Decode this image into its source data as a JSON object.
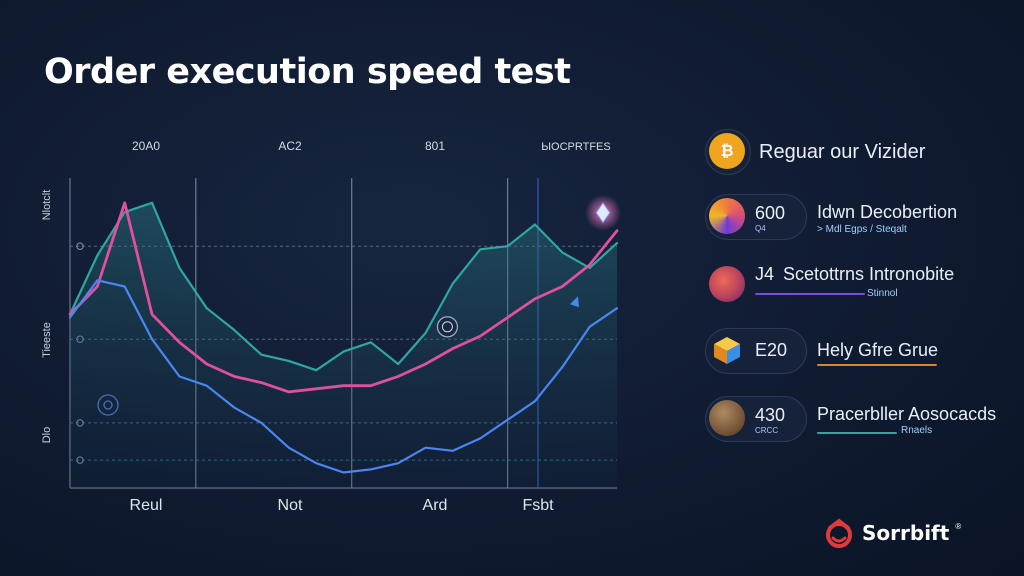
{
  "title": "Order execution speed test",
  "chart_data": {
    "type": "line",
    "top_labels": [
      "20A0",
      "AC2",
      "801",
      "ЫOCPRTFES"
    ],
    "categories": [
      "Reul",
      "Not",
      "Ard",
      "Fsbt"
    ],
    "y_tick_labels": [
      "Nlotclt",
      "Tieeste",
      "Dlo"
    ],
    "x": [
      0,
      0.5,
      1,
      1.5,
      2,
      2.5,
      3,
      3.5,
      4,
      4.5,
      5,
      5.5,
      6,
      6.5,
      7,
      7.5,
      8,
      8.5,
      9,
      9.5,
      10
    ],
    "ylim": [
      0,
      100
    ],
    "grid": true,
    "series": [
      {
        "color": "#2fa6a0",
        "values": [
          56,
          75,
          89,
          92,
          71,
          58,
          51,
          43,
          41,
          38,
          44,
          47,
          40,
          50,
          66,
          77,
          78,
          85,
          76,
          71,
          79
        ]
      },
      {
        "color": "#e0509c",
        "values": [
          56,
          65,
          92,
          56,
          47,
          40,
          36,
          34,
          31,
          32,
          33,
          33,
          36,
          40,
          45,
          49,
          55,
          61,
          65,
          72,
          83
        ]
      },
      {
        "color": "#4a86ef",
        "values": [
          55,
          67,
          65,
          48,
          36,
          33,
          26,
          21,
          13,
          8,
          5,
          6,
          8,
          13,
          12,
          16,
          22,
          28,
          39,
          52,
          58
        ]
      }
    ],
    "markers": [
      {
        "x": 6.9,
        "y": 52
      }
    ]
  },
  "sidebar": {
    "header": {
      "label": "Reguar our Vizider",
      "icon": "bitcoin-icon",
      "color": "#f0a520"
    },
    "items": [
      {
        "value": "600",
        "sub": "Q4",
        "label": "Idwn Decobertion",
        "caption": "> Mdl Egps / Steqalt",
        "icon": "swirl-coin-icon",
        "color": "#d64d7c"
      },
      {
        "value": "J4",
        "sub": "",
        "label": "Scetottrns Intronobite",
        "caption": "Stinnol",
        "icon": "mosaic-coin-icon",
        "color": "#b8415f"
      },
      {
        "value": "E20",
        "sub": "",
        "label": "Hely Gfre Grue",
        "caption": "",
        "icon": "cube-icon",
        "color": "#f0b62a"
      },
      {
        "value": "430",
        "sub": "CRCC",
        "label": "Pracerbller Aosocacds",
        "caption": "Rnaels",
        "icon": "wood-coin-icon",
        "color": "#8c6a4a"
      }
    ]
  },
  "brand": {
    "name": "Sorrbift",
    "mark": "®"
  }
}
